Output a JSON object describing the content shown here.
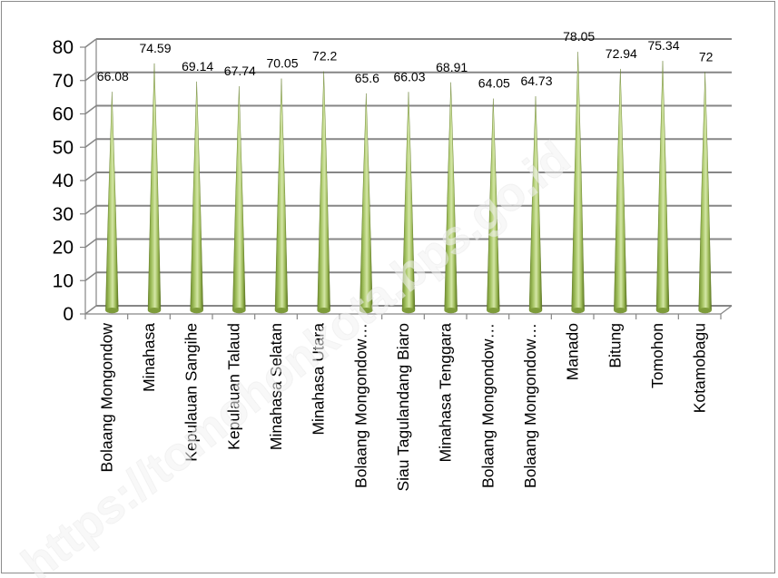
{
  "chart_data": {
    "type": "bar",
    "bar_shape": "cone",
    "categories": [
      "Bolaang Mongondow",
      "Minahasa",
      "Kepulauan Sangihe",
      "Kepulauan Talaud",
      "Minahasa Selatan",
      "Minahasa Utara",
      "Bolaang Mongondow…",
      "Siau Tagulandang Biaro",
      "Minahasa Tenggara",
      "Bolaang Mongondow…",
      "Bolaang Mongondow…",
      "Manado",
      "Bitung",
      "Tomohon",
      "Kotamobagu"
    ],
    "values": [
      66.08,
      74.59,
      69.14,
      67.74,
      70.05,
      72.2,
      65.6,
      66.03,
      68.91,
      64.05,
      64.73,
      78.05,
      72.94,
      75.34,
      72
    ],
    "data_labels": [
      "66.08",
      "74.59",
      "69.14",
      "67.74",
      "70.05",
      "72.2",
      "65.6",
      "66.03",
      "68.91",
      "64.05",
      "64.73",
      "78.05",
      "72.94",
      "75.34",
      "72"
    ],
    "title": "",
    "xlabel": "",
    "ylabel": "",
    "ylim": [
      0,
      80
    ],
    "y_ticks": [
      "0",
      "10",
      "20",
      "30",
      "40",
      "50",
      "60",
      "70",
      "80"
    ],
    "grid": true,
    "legend": "none",
    "colors": {
      "bar": "#9bbb59",
      "bar_dark": "#5f7a22",
      "bar_light": "#d7e8ac",
      "grid": "#868686",
      "axis": "#868686"
    }
  },
  "watermark": {
    "text": "https://tomohonkota.bps.go.id"
  }
}
